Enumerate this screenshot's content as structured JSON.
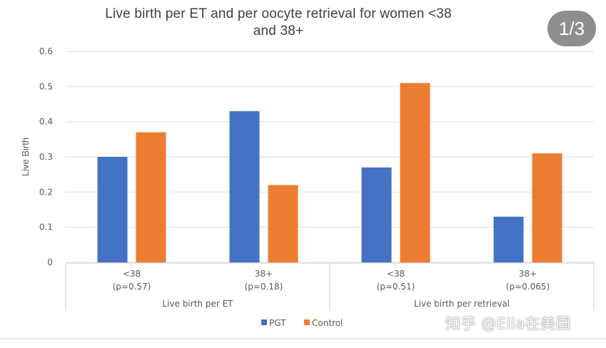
{
  "chart_data": {
    "type": "bar",
    "title": "Live birth per ET and per oocyte retrieval for women <38 and 38+",
    "title_lines": [
      "Live birth per ET and per oocyte retrieval for women <38",
      "and 38+"
    ],
    "xlabel": "",
    "ylabel": "Live Birth",
    "ylim": [
      0,
      0.6
    ],
    "yticks": [
      0,
      0.1,
      0.2,
      0.3,
      0.4,
      0.5,
      0.6
    ],
    "ytick_labels": [
      "0",
      "0.1",
      "0.2",
      "0.3",
      "0.4",
      "0.5",
      "0.6"
    ],
    "grid": true,
    "categories": [
      {
        "label": "<38",
        "sublabel": "(p=0.57)",
        "group": "Live birth per ET"
      },
      {
        "label": "38+",
        "sublabel": "(p=0.18)",
        "group": "Live birth per ET"
      },
      {
        "label": "<38",
        "sublabel": "(p=0.51)",
        "group": "Live birth per retrieval"
      },
      {
        "label": "38+",
        "sublabel": "(p=0.065)",
        "group": "Live birth per retrieval"
      }
    ],
    "groups": [
      "Live birth per ET",
      "Live birth per retrieval"
    ],
    "series": [
      {
        "name": "PGT",
        "color": "#4472c4",
        "values": [
          0.3,
          0.43,
          0.27,
          0.13
        ]
      },
      {
        "name": "Control",
        "color": "#ed7d31",
        "values": [
          0.37,
          0.22,
          0.51,
          0.31
        ]
      }
    ],
    "legend": "bottom-center"
  },
  "overlay": {
    "page_counter": "1/3",
    "watermark": "知乎 @Ella在美国"
  }
}
